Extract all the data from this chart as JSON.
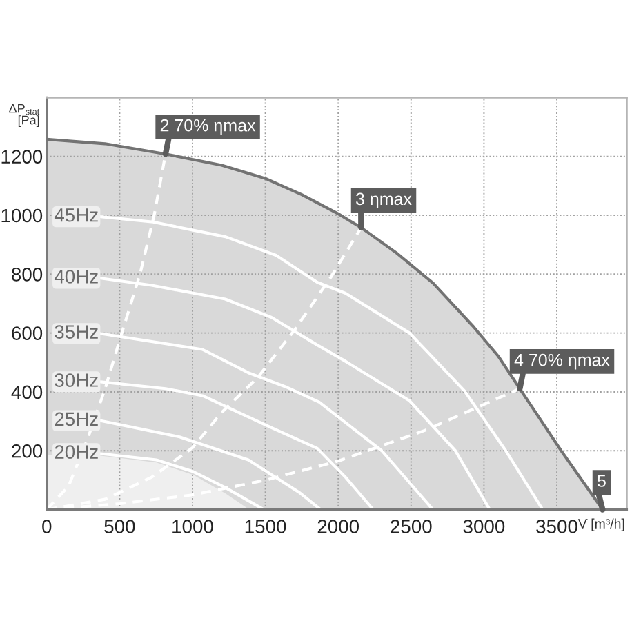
{
  "chart_data": {
    "type": "line",
    "xlabel": "V̇ [m³/h]",
    "ylabel": "ΔP$_{stat}$\n[Pa]",
    "xlim": [
      0,
      3980
    ],
    "ylim": [
      0,
      1400
    ],
    "xticks": [
      0,
      500,
      1000,
      1500,
      2000,
      2500,
      3000,
      3500
    ],
    "yticks": [
      200,
      400,
      600,
      800,
      1000,
      1200
    ],
    "grid": true,
    "legend": "left",
    "series": [
      {
        "type": "area",
        "color": "#737373",
        "line_style": "solid",
        "x": [
          0,
          400,
          815,
          1200,
          1500,
          1750,
          2000,
          2157,
          2400,
          2650,
          2927,
          3100,
          3246,
          3530,
          3814
        ],
        "values": [
          1258,
          1243,
          1208,
          1170,
          1125,
          1070,
          1005,
          958,
          872,
          770,
          622,
          520,
          411,
          200,
          0
        ]
      },
      {
        "type": "area",
        "color": "#efefef",
        "x": [
          0,
          370,
          752,
          1005,
          1225,
          1390
        ],
        "values": [
          185,
          183,
          160,
          118,
          55,
          0
        ]
      },
      {
        "color": "#ffffff",
        "line_style": "dashed",
        "x": [
          0,
          150,
          280,
          400,
          515,
          640,
          737,
          815
        ],
        "values": [
          0,
          80,
          240,
          410,
          600,
          800,
          1000,
          1208
        ]
      },
      {
        "color": "#ffffff",
        "line_style": "dashed",
        "x": [
          0,
          400,
          720,
          1000,
          1200,
          1450,
          1700,
          1950,
          2157
        ],
        "values": [
          0,
          35,
          110,
          210,
          330,
          450,
          610,
          790,
          958
        ]
      },
      {
        "color": "#ffffff",
        "line_style": "dashed",
        "x": [
          0,
          500,
          1000,
          1500,
          2000,
          2600,
          3246
        ],
        "values": [
          0,
          20,
          50,
          100,
          165,
          270,
          411
        ]
      },
      {
        "name": "45Hz",
        "color": "#ffffff",
        "x": [
          370,
          730,
          1226,
          1573,
          1857,
          2050,
          2489,
          2867,
          3150,
          3403
        ],
        "values": [
          995,
          977,
          927,
          864,
          772,
          735,
          600,
          403,
          200,
          0
        ]
      },
      {
        "name": "40Hz",
        "color": "#ffffff",
        "x": [
          370,
          720,
          1225,
          1542,
          1857,
          2046,
          2489,
          2804,
          3040
        ],
        "values": [
          786,
          762,
          715,
          653,
          559,
          505,
          370,
          200,
          0
        ]
      },
      {
        "name": "35Hz",
        "color": "#ffffff",
        "x": [
          370,
          1068,
          1383,
          1650,
          1870,
          2299,
          2650
        ],
        "values": [
          598,
          544,
          465,
          415,
          365,
          200,
          0
        ]
      },
      {
        "name": "30Hz",
        "color": "#ffffff",
        "x": [
          370,
          815,
          1068,
          1542,
          1857,
          2050,
          2240
        ],
        "values": [
          434,
          411,
          387,
          278,
          208,
          110,
          0
        ]
      },
      {
        "name": "25Hz",
        "color": "#ffffff",
        "x": [
          370,
          911,
          1383,
          1731,
          1880
        ],
        "values": [
          302,
          247,
          169,
          59,
          0
        ]
      },
      {
        "name": "20Hz",
        "color": "#ffffff",
        "x": [
          370,
          752,
          1005,
          1225,
          1490
        ],
        "values": [
          190,
          169,
          129,
          75,
          0
        ]
      }
    ],
    "annotations": [
      {
        "text": "2 70% ηmax",
        "x": 815,
        "y": 1208
      },
      {
        "text": "3 ηmax",
        "x": 2157,
        "y": 958
      },
      {
        "text": "4 70% ηmax",
        "x": 3246,
        "y": 411
      },
      {
        "text": "5",
        "x": 3814,
        "y": 0
      }
    ]
  }
}
